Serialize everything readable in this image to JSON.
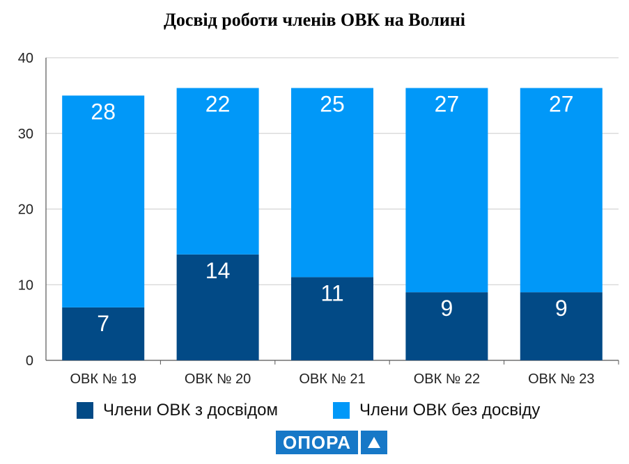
{
  "chart_data": {
    "type": "bar",
    "stacked": true,
    "title": "Досвід роботи членів ОВК на Волині",
    "categories": [
      "ОВК № 19",
      "ОВК № 20",
      "ОВК № 21",
      "ОВК № 22",
      "ОВК № 23"
    ],
    "series": [
      {
        "name": "Члени ОВК з досвідом",
        "color": "#024a86",
        "values": [
          7,
          14,
          11,
          9,
          9
        ]
      },
      {
        "name": "Члени ОВК без досвіду",
        "color": "#0198f8",
        "values": [
          28,
          22,
          25,
          27,
          27
        ]
      }
    ],
    "ylim": [
      0,
      40
    ],
    "yticks": [
      0,
      10,
      20,
      30,
      40
    ],
    "grid": true,
    "legend_position": "bottom",
    "data_labels": true
  },
  "logo": {
    "text": "ОПОРА",
    "color": "#1778c7",
    "icon": "triangle-icon"
  }
}
